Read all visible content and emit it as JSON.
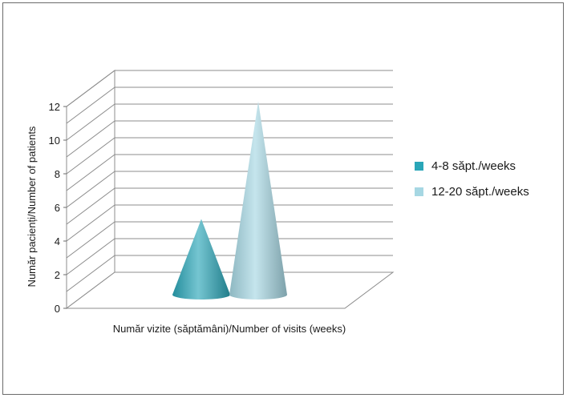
{
  "chart_data": {
    "type": "bar",
    "style": "3d-cone",
    "categories": [
      ""
    ],
    "series": [
      {
        "name": "4-8 săpt./weeks",
        "values": [
          4.5
        ],
        "color": "#2aa6b8"
      },
      {
        "name": "12-20 săpt./weeks",
        "values": [
          11.5
        ],
        "color": "#a6d7e3"
      }
    ],
    "xlabel": "Număr vizite (săptămâni)/Number of visits (weeks)",
    "ylabel": "Număr pacienți/Number of patients",
    "ylim": [
      0,
      12
    ],
    "yticks": [
      "0",
      "2",
      "4",
      "6",
      "8",
      "10",
      "12"
    ],
    "minor_gridlines": true,
    "legend_position": "right"
  }
}
